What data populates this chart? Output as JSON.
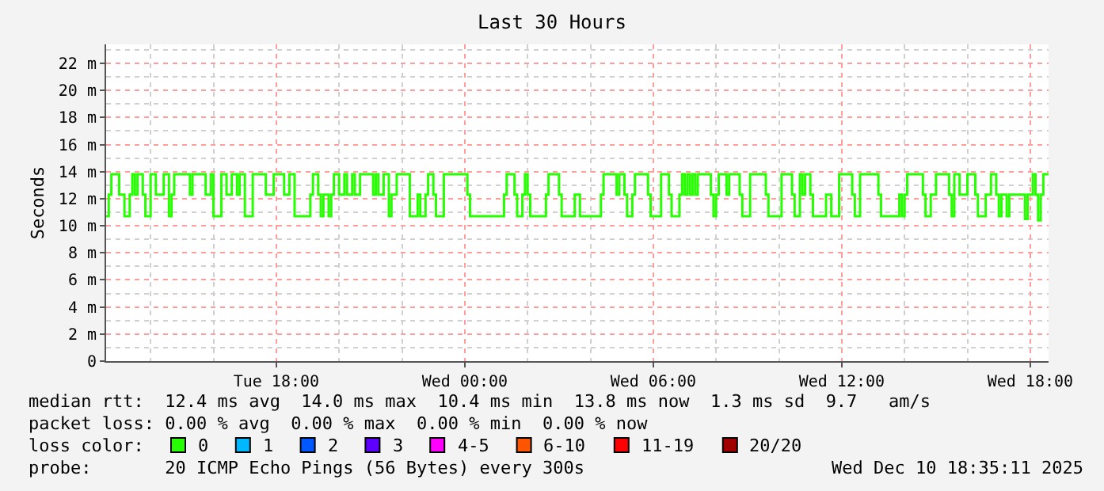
{
  "chart_data": {
    "type": "step",
    "title": "Last 30 Hours",
    "ylabel": "Seconds",
    "xlim": [
      "2025-12-09T12:35",
      "2025-12-10T18:35"
    ],
    "xticks": [
      {
        "value": "2025-12-09T18:00",
        "label": "Tue 18:00"
      },
      {
        "value": "2025-12-10T00:00",
        "label": "Wed 00:00"
      },
      {
        "value": "2025-12-10T06:00",
        "label": "Wed 06:00"
      },
      {
        "value": "2025-12-10T12:00",
        "label": "Wed 12:00"
      },
      {
        "value": "2025-12-10T18:00",
        "label": "Wed 18:00"
      }
    ],
    "ylim": [
      0,
      23.4
    ],
    "yticks": [
      {
        "value": 0,
        "label": "0"
      },
      {
        "value": 2,
        "label": "2 m"
      },
      {
        "value": 4,
        "label": "4 m"
      },
      {
        "value": 6,
        "label": "6 m"
      },
      {
        "value": 8,
        "label": "8 m"
      },
      {
        "value": 10,
        "label": "10 m"
      },
      {
        "value": 12,
        "label": "12 m"
      },
      {
        "value": 14,
        "label": "14 m"
      },
      {
        "value": 16,
        "label": "16 m"
      },
      {
        "value": 18,
        "label": "18 m"
      },
      {
        "value": 20,
        "label": "20 m"
      },
      {
        "value": 22,
        "label": "22 m"
      }
    ],
    "grid": true,
    "legend": "bottom",
    "legend_title": "loss color:",
    "series": [
      {
        "name": "0",
        "color": "#26ff00",
        "x": [
          "2025-12-09T12:35",
          "2025-12-09T12:40",
          "2025-12-09T12:45",
          "2025-12-09T13:00",
          "2025-12-09T13:10",
          "2025-12-09T13:20",
          "2025-12-09T13:25",
          "2025-12-09T13:30",
          "2025-12-09T13:35",
          "2025-12-09T13:45",
          "2025-12-09T13:50",
          "2025-12-09T14:00",
          "2025-12-09T14:10",
          "2025-12-09T14:25",
          "2025-12-09T14:35",
          "2025-12-09T14:40",
          "2025-12-09T14:45",
          "2025-12-09T15:15",
          "2025-12-09T15:20",
          "2025-12-09T15:45",
          "2025-12-09T15:55",
          "2025-12-09T16:00",
          "2025-12-09T16:15",
          "2025-12-09T16:25",
          "2025-12-09T16:35",
          "2025-12-09T16:45",
          "2025-12-09T16:50",
          "2025-12-09T17:00",
          "2025-12-09T17:15",
          "2025-12-09T17:40",
          "2025-12-09T17:55",
          "2025-12-09T18:15",
          "2025-12-09T18:25",
          "2025-12-09T18:35",
          "2025-12-09T19:05",
          "2025-12-09T19:10",
          "2025-12-09T19:20",
          "2025-12-09T19:25",
          "2025-12-09T19:30",
          "2025-12-09T19:40",
          "2025-12-09T19:45",
          "2025-12-09T19:50",
          "2025-12-09T20:00",
          "2025-12-09T20:10",
          "2025-12-09T20:15",
          "2025-12-09T20:25",
          "2025-12-09T20:30",
          "2025-12-09T20:40",
          "2025-12-09T21:05",
          "2025-12-09T21:10",
          "2025-12-09T21:15",
          "2025-12-09T21:25",
          "2025-12-09T21:35",
          "2025-12-09T21:40",
          "2025-12-09T21:50",
          "2025-12-09T22:15",
          "2025-12-09T22:30",
          "2025-12-09T22:35",
          "2025-12-09T22:45",
          "2025-12-09T22:50",
          "2025-12-09T23:00",
          "2025-12-09T23:05",
          "2025-12-09T23:20",
          "2025-12-10T00:05",
          "2025-12-10T00:10",
          "2025-12-10T01:15",
          "2025-12-10T01:20",
          "2025-12-10T01:35",
          "2025-12-10T01:40",
          "2025-12-10T01:50",
          "2025-12-10T01:55",
          "2025-12-10T02:00",
          "2025-12-10T02:05",
          "2025-12-10T02:35",
          "2025-12-10T02:40",
          "2025-12-10T03:00",
          "2025-12-10T03:05",
          "2025-12-10T03:30",
          "2025-12-10T03:40",
          "2025-12-10T04:20",
          "2025-12-10T04:25",
          "2025-12-10T04:50",
          "2025-12-10T04:55",
          "2025-12-10T05:05",
          "2025-12-10T05:10",
          "2025-12-10T05:20",
          "2025-12-10T05:25",
          "2025-12-10T05:50",
          "2025-12-10T05:55",
          "2025-12-10T06:15",
          "2025-12-10T06:30",
          "2025-12-10T06:35",
          "2025-12-10T06:50",
          "2025-12-10T06:55",
          "2025-12-10T07:00",
          "2025-12-10T07:05",
          "2025-12-10T07:10",
          "2025-12-10T07:15",
          "2025-12-10T07:20",
          "2025-12-10T07:25",
          "2025-12-10T07:50",
          "2025-12-10T07:55",
          "2025-12-10T08:00",
          "2025-12-10T08:05",
          "2025-12-10T08:20",
          "2025-12-10T08:25",
          "2025-12-10T08:45",
          "2025-12-10T08:50",
          "2025-12-10T09:05",
          "2025-12-10T09:35",
          "2025-12-10T09:40",
          "2025-12-10T10:05",
          "2025-12-10T10:25",
          "2025-12-10T10:30",
          "2025-12-10T10:40",
          "2025-12-10T10:45",
          "2025-12-10T10:50",
          "2025-12-10T11:00",
          "2025-12-10T11:05",
          "2025-12-10T11:30",
          "2025-12-10T11:40",
          "2025-12-10T11:55",
          "2025-12-10T12:20",
          "2025-12-10T12:25",
          "2025-12-10T12:35",
          "2025-12-10T13:10",
          "2025-12-10T13:15",
          "2025-12-10T13:50",
          "2025-12-10T13:55",
          "2025-12-10T14:00",
          "2025-12-10T14:05",
          "2025-12-10T14:35",
          "2025-12-10T14:40",
          "2025-12-10T14:50",
          "2025-12-10T15:00",
          "2025-12-10T15:25",
          "2025-12-10T15:30",
          "2025-12-10T15:35",
          "2025-12-10T15:45",
          "2025-12-10T16:00",
          "2025-12-10T16:15",
          "2025-12-10T16:20",
          "2025-12-10T16:35",
          "2025-12-10T16:45",
          "2025-12-10T16:55",
          "2025-12-10T17:00",
          "2025-12-10T17:05",
          "2025-12-10T17:15",
          "2025-12-10T17:20",
          "2025-12-10T17:50",
          "2025-12-10T17:55",
          "2025-12-10T18:05",
          "2025-12-10T18:10",
          "2025-12-10T18:15",
          "2025-12-10T18:20",
          "2025-12-10T18:25",
          "2025-12-10T18:35"
        ],
        "values": [
          10.7,
          12.3,
          13.8,
          12.3,
          10.7,
          12.3,
          13.8,
          12.3,
          13.8,
          12.3,
          10.7,
          13.8,
          12.3,
          13.8,
          10.7,
          12.3,
          13.8,
          12.3,
          13.8,
          12.3,
          13.8,
          10.7,
          13.8,
          12.3,
          13.8,
          12.3,
          13.8,
          10.7,
          13.8,
          12.3,
          13.8,
          12.3,
          13.8,
          10.7,
          12.3,
          13.8,
          12.3,
          10.7,
          12.3,
          10.7,
          12.3,
          13.8,
          12.3,
          13.8,
          12.3,
          13.8,
          12.3,
          13.8,
          12.3,
          13.8,
          12.3,
          13.8,
          10.7,
          12.3,
          13.8,
          10.7,
          12.3,
          10.7,
          12.3,
          13.8,
          12.3,
          10.7,
          13.8,
          12.3,
          10.7,
          12.3,
          13.8,
          12.3,
          10.7,
          12.3,
          13.8,
          12.3,
          10.7,
          12.3,
          13.8,
          12.3,
          10.7,
          12.3,
          10.7,
          12.3,
          13.8,
          12.3,
          13.8,
          12.3,
          10.7,
          12.3,
          13.8,
          12.3,
          10.7,
          13.8,
          12.3,
          10.7,
          12.3,
          13.8,
          12.3,
          13.8,
          12.3,
          13.8,
          12.3,
          13.8,
          12.3,
          10.7,
          12.3,
          13.8,
          12.3,
          13.8,
          12.3,
          10.7,
          13.8,
          12.3,
          10.7,
          13.8,
          12.3,
          10.7,
          13.8,
          12.3,
          13.8,
          12.3,
          10.7,
          12.3,
          10.7,
          13.8,
          12.3,
          10.7,
          13.8,
          12.3,
          10.7,
          12.3,
          10.7,
          12.3,
          13.8,
          12.3,
          10.7,
          12.3,
          13.8,
          12.3,
          10.7,
          13.8,
          12.3,
          13.8,
          12.3,
          10.7,
          12.3,
          13.8,
          12.3,
          10.7,
          12.3,
          10.7,
          12.3,
          10.5,
          12.3,
          13.8,
          12.3,
          10.4,
          12.3,
          13.8,
          13.8
        ]
      },
      {
        "name": "1",
        "color": "#00b8ff"
      },
      {
        "name": "2",
        "color": "#0059ff"
      },
      {
        "name": "3",
        "color": "#5e00ff"
      },
      {
        "name": "4-5",
        "color": "#ff00ff"
      },
      {
        "name": "6-10",
        "color": "#ff5500"
      },
      {
        "name": "11-19",
        "color": "#ff0000"
      },
      {
        "name": "20/20",
        "color": "#a10000"
      }
    ],
    "annotations": [
      "median rtt:  12.4 ms avg  14.0 ms max  10.4 ms min  13.8 ms now  1.3 ms sd  9.7   am/s",
      "packet loss: 0.00 % avg  0.00 % max  0.00 % min  0.00 % now",
      "probe:       20 ICMP Echo Pings (56 Bytes) every 300s",
      "Wed Dec 10 18:35:11 2025"
    ]
  }
}
